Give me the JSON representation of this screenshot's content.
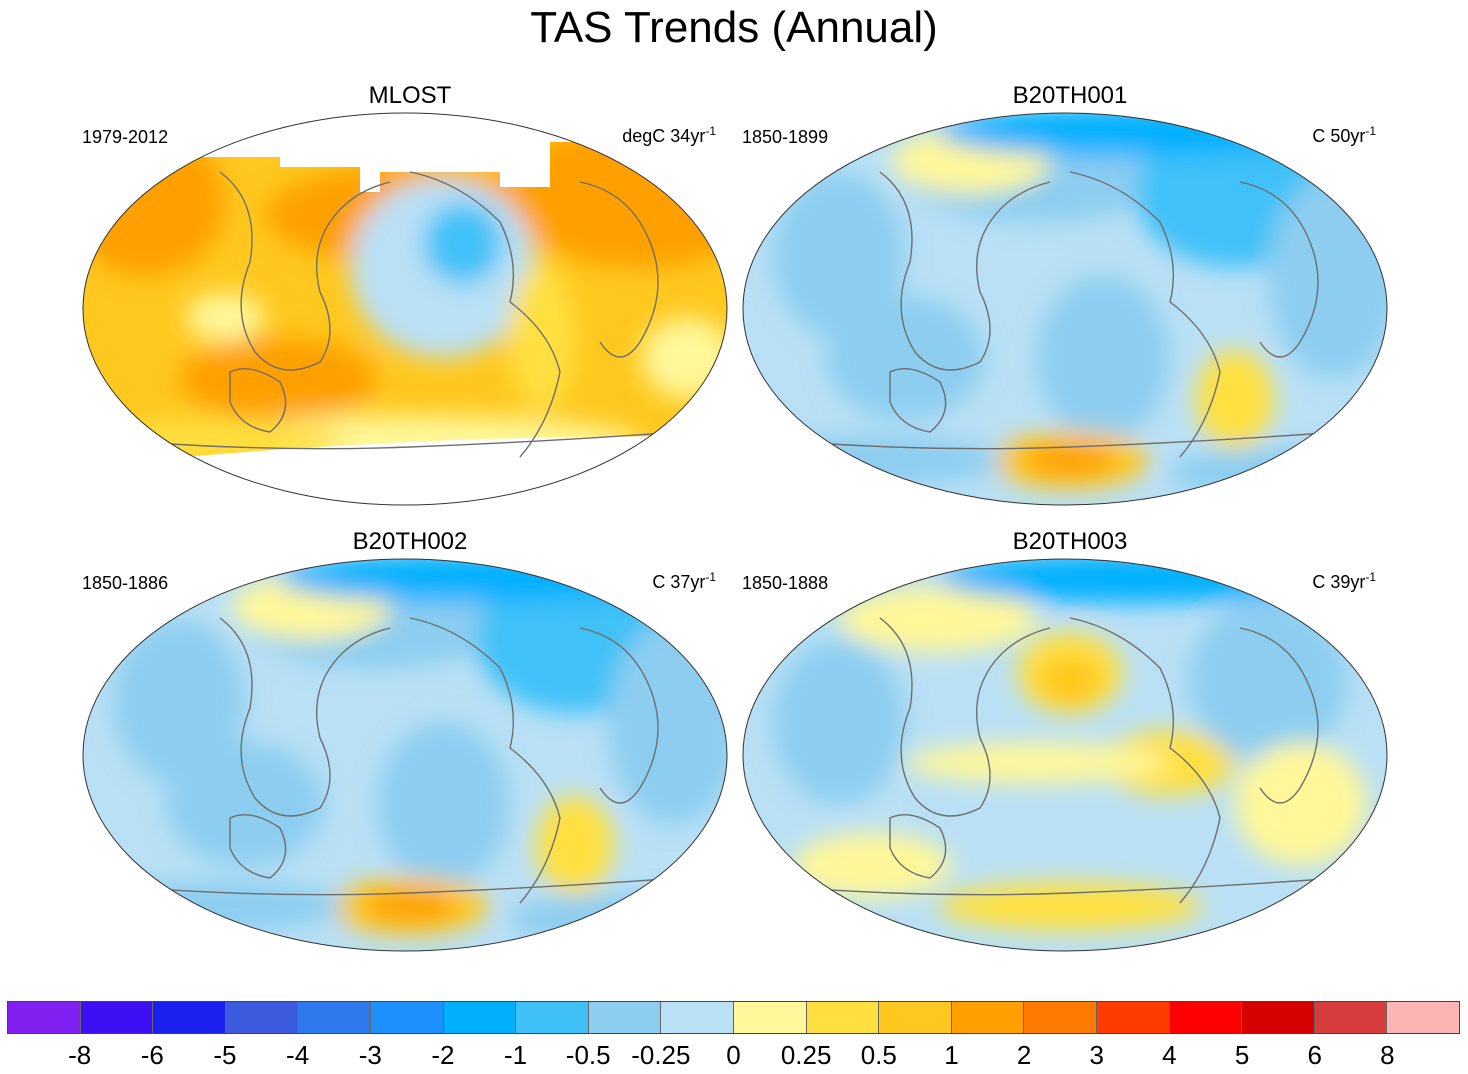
{
  "title": "TAS Trends (Annual)",
  "panels": [
    {
      "name": "MLOST",
      "period": "1979-2012",
      "units_prefix": "degC 34yr",
      "units_exp": "-1",
      "style": "warm"
    },
    {
      "name": "B20TH001",
      "period": "1850-1899",
      "units_prefix": "C 50yr",
      "units_exp": "-1",
      "style": "cool"
    },
    {
      "name": "B20TH002",
      "period": "1850-1886",
      "units_prefix": "C 37yr",
      "units_exp": "-1",
      "style": "cool"
    },
    {
      "name": "B20TH003",
      "period": "1850-1888",
      "units_prefix": "C 39yr",
      "units_exp": "-1",
      "style": "mixed"
    }
  ],
  "colorbar": {
    "colors": [
      "#7f1ff0",
      "#3c0ff5",
      "#1a20f0",
      "#3c5ade",
      "#2f78ee",
      "#1e90ff",
      "#00b0ff",
      "#3fc1f7",
      "#8ccdf0",
      "#b9e0f5",
      "#fff799",
      "#ffe040",
      "#ffc81e",
      "#ffa000",
      "#ff7a00",
      "#ff3c00",
      "#ff0000",
      "#d70000",
      "#d73c3c",
      "#ffb4b4"
    ],
    "labels": [
      "-8",
      "-6",
      "-5",
      "-4",
      "-3",
      "-2",
      "-1",
      "-0.5",
      "-0.25",
      "0",
      "0.25",
      "0.5",
      "1",
      "2",
      "3",
      "4",
      "5",
      "6",
      "8"
    ]
  }
}
